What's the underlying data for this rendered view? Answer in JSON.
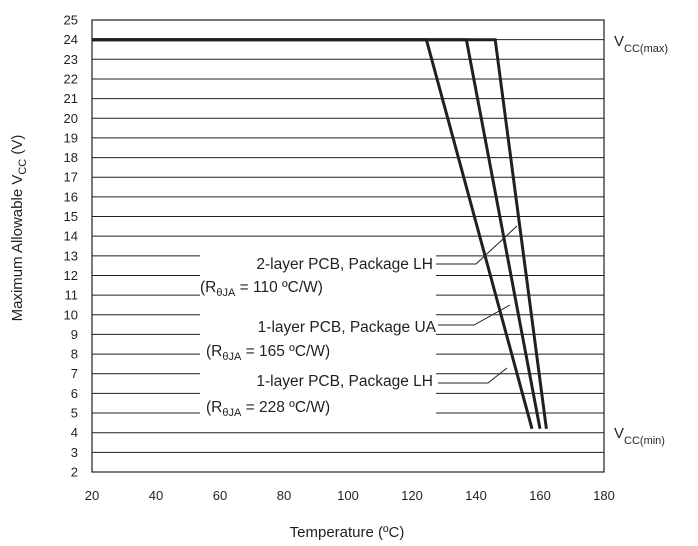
{
  "chart_data": {
    "type": "line",
    "title": "",
    "xlabel": "Temperature (ºC)",
    "ylabel": {
      "main": "Maximum Allowable V",
      "sub": "CC",
      "unit": " (V)"
    },
    "xlim": [
      20,
      180
    ],
    "ylim": [
      2,
      25
    ],
    "xticks": [
      20,
      40,
      60,
      80,
      100,
      120,
      140,
      160,
      180
    ],
    "yticks": [
      2,
      3,
      4,
      5,
      6,
      7,
      8,
      9,
      10,
      11,
      12,
      13,
      14,
      15,
      16,
      17,
      18,
      19,
      20,
      21,
      22,
      23,
      24,
      25
    ],
    "grid": {
      "horizontal": true,
      "vertical": false
    },
    "series": [
      {
        "name": "2-layer PCB, Package LH (RθJA = 110 ºC/W)",
        "points": [
          [
            20,
            24
          ],
          [
            146,
            24
          ],
          [
            162,
            4.2
          ]
        ]
      },
      {
        "name": "1-layer PCB, Package UA (RθJA = 165 ºC/W)",
        "points": [
          [
            20,
            24
          ],
          [
            137,
            24
          ],
          [
            160,
            4.2
          ]
        ]
      },
      {
        "name": "1-layer PCB, Package LH (RθJA = 228 ºC/W)",
        "points": [
          [
            20,
            24
          ],
          [
            124.5,
            24
          ],
          [
            157.5,
            4.2
          ]
        ]
      }
    ],
    "annotations": [
      {
        "line1": "2-layer PCB, Package LH",
        "sym": "(R",
        "sub": "θJA",
        "rest": " = 110 ºC/W)"
      },
      {
        "line1": "1-layer PCB, Package UA",
        "sym": "(R",
        "sub": "θJA",
        "rest": " = 165 ºC/W)"
      },
      {
        "line1": "1-layer PCB, Package LH",
        "sym": "(R",
        "sub": "θJA",
        "rest": " = 228 ºC/W)"
      }
    ],
    "reference_labels": [
      {
        "main": "V",
        "sub": "CC(max)",
        "y": 24
      },
      {
        "main": "V",
        "sub": "CC(min)",
        "y": 4
      }
    ]
  }
}
